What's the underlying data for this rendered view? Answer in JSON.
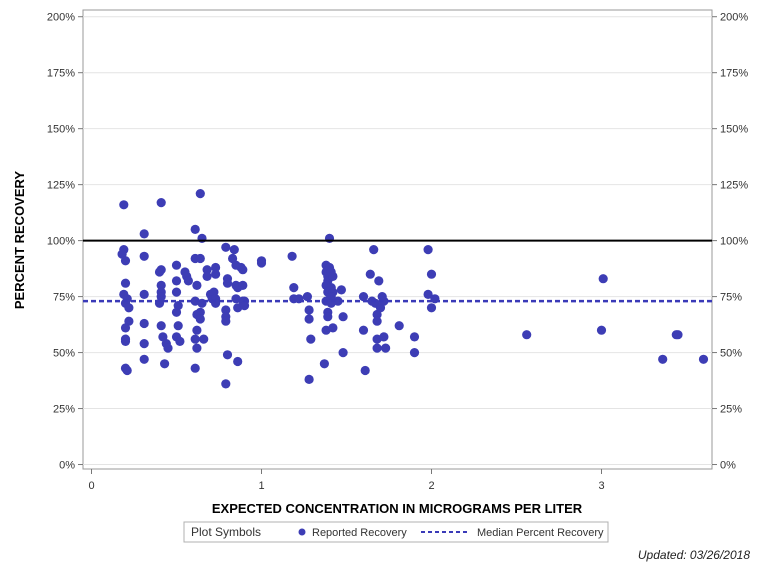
{
  "chart_data": {
    "type": "scatter",
    "title": "",
    "xlabel": "EXPECTED CONCENTRATION IN MICROGRAMS PER LITER",
    "ylabel": "PERCENT RECOVERY",
    "xlim": [
      -0.05,
      3.65
    ],
    "ylim": [
      -2,
      203
    ],
    "x_ticks": [
      0,
      1,
      2,
      3
    ],
    "x_tick_labels": [
      "0",
      "1",
      "2",
      "3"
    ],
    "y_ticks": [
      0,
      25,
      50,
      75,
      100,
      125,
      150,
      175,
      200
    ],
    "y_tick_labels": [
      "0%",
      "25%",
      "50%",
      "75%",
      "100%",
      "125%",
      "150%",
      "175%",
      "200%"
    ],
    "reference_line": {
      "value": 100,
      "color": "#000000"
    },
    "median_line": {
      "name": "Median Percent Recovery",
      "value": 73,
      "color": "#3a3ab8"
    },
    "legend": {
      "title": "Plot Symbols",
      "entries": [
        "Reported Recovery",
        "Median Percent Recovery"
      ],
      "placement": "bottom"
    },
    "marker_color": "#3d3db5",
    "series": [
      {
        "name": "Reported Recovery",
        "points": [
          [
            0.19,
            116
          ],
          [
            0.19,
            96
          ],
          [
            0.18,
            94
          ],
          [
            0.2,
            91
          ],
          [
            0.2,
            81
          ],
          [
            0.19,
            76
          ],
          [
            0.21,
            74
          ],
          [
            0.2,
            72
          ],
          [
            0.22,
            70
          ],
          [
            0.22,
            64
          ],
          [
            0.2,
            61
          ],
          [
            0.2,
            56
          ],
          [
            0.2,
            55
          ],
          [
            0.2,
            43
          ],
          [
            0.21,
            42
          ],
          [
            0.31,
            103
          ],
          [
            0.31,
            93
          ],
          [
            0.31,
            76
          ],
          [
            0.31,
            63
          ],
          [
            0.31,
            54
          ],
          [
            0.31,
            47
          ],
          [
            0.41,
            117
          ],
          [
            0.41,
            87
          ],
          [
            0.4,
            86
          ],
          [
            0.41,
            80
          ],
          [
            0.41,
            77
          ],
          [
            0.41,
            75
          ],
          [
            0.4,
            72
          ],
          [
            0.41,
            62
          ],
          [
            0.42,
            57
          ],
          [
            0.44,
            54
          ],
          [
            0.43,
            45
          ],
          [
            0.45,
            52
          ],
          [
            0.5,
            89
          ],
          [
            0.5,
            82
          ],
          [
            0.5,
            77
          ],
          [
            0.51,
            71
          ],
          [
            0.5,
            68
          ],
          [
            0.51,
            62
          ],
          [
            0.5,
            57
          ],
          [
            0.52,
            55
          ],
          [
            0.55,
            86
          ],
          [
            0.56,
            84
          ],
          [
            0.57,
            82
          ],
          [
            0.61,
            105
          ],
          [
            0.61,
            92
          ],
          [
            0.62,
            80
          ],
          [
            0.61,
            73
          ],
          [
            0.62,
            67
          ],
          [
            0.62,
            60
          ],
          [
            0.61,
            56
          ],
          [
            0.62,
            52
          ],
          [
            0.61,
            43
          ],
          [
            0.64,
            121
          ],
          [
            0.65,
            101
          ],
          [
            0.64,
            92
          ],
          [
            0.65,
            72
          ],
          [
            0.64,
            68
          ],
          [
            0.64,
            65
          ],
          [
            0.66,
            56
          ],
          [
            0.68,
            87
          ],
          [
            0.68,
            84
          ],
          [
            0.7,
            76
          ],
          [
            0.71,
            74
          ],
          [
            0.72,
            77
          ],
          [
            0.73,
            88
          ],
          [
            0.73,
            85
          ],
          [
            0.73,
            74
          ],
          [
            0.73,
            72
          ],
          [
            0.79,
            97
          ],
          [
            0.8,
            83
          ],
          [
            0.8,
            81
          ],
          [
            0.79,
            69
          ],
          [
            0.79,
            66
          ],
          [
            0.79,
            64
          ],
          [
            0.8,
            49
          ],
          [
            0.79,
            36
          ],
          [
            0.83,
            92
          ],
          [
            0.84,
            96
          ],
          [
            0.85,
            89
          ],
          [
            0.85,
            80
          ],
          [
            0.86,
            79
          ],
          [
            0.85,
            74
          ],
          [
            0.86,
            70
          ],
          [
            0.86,
            46
          ],
          [
            0.88,
            88
          ],
          [
            0.89,
            87
          ],
          [
            0.89,
            80
          ],
          [
            0.89,
            73
          ],
          [
            0.9,
            73
          ],
          [
            0.9,
            71
          ],
          [
            1.0,
            91
          ],
          [
            1.0,
            90
          ],
          [
            1.18,
            93
          ],
          [
            1.19,
            79
          ],
          [
            1.19,
            74
          ],
          [
            1.22,
            74
          ],
          [
            1.27,
            75
          ],
          [
            1.28,
            69
          ],
          [
            1.28,
            65
          ],
          [
            1.29,
            56
          ],
          [
            1.28,
            38
          ],
          [
            1.38,
            89
          ],
          [
            1.38,
            86
          ],
          [
            1.39,
            84
          ],
          [
            1.39,
            82
          ],
          [
            1.38,
            80
          ],
          [
            1.39,
            77
          ],
          [
            1.38,
            73
          ],
          [
            1.39,
            68
          ],
          [
            1.39,
            66
          ],
          [
            1.38,
            60
          ],
          [
            1.37,
            45
          ],
          [
            1.4,
            101
          ],
          [
            1.4,
            88
          ],
          [
            1.41,
            86
          ],
          [
            1.42,
            84
          ],
          [
            1.41,
            79
          ],
          [
            1.42,
            77
          ],
          [
            1.41,
            75
          ],
          [
            1.42,
            73
          ],
          [
            1.41,
            72
          ],
          [
            1.42,
            61
          ],
          [
            1.45,
            73
          ],
          [
            1.47,
            78
          ],
          [
            1.48,
            66
          ],
          [
            1.48,
            50
          ],
          [
            1.6,
            75
          ],
          [
            1.6,
            60
          ],
          [
            1.61,
            42
          ],
          [
            1.64,
            85
          ],
          [
            1.65,
            73
          ],
          [
            1.66,
            96
          ],
          [
            1.67,
            72
          ],
          [
            1.68,
            67
          ],
          [
            1.68,
            64
          ],
          [
            1.68,
            56
          ],
          [
            1.68,
            52
          ],
          [
            1.69,
            82
          ],
          [
            1.7,
            70
          ],
          [
            1.71,
            75
          ],
          [
            1.72,
            73
          ],
          [
            1.72,
            57
          ],
          [
            1.73,
            52
          ],
          [
            1.81,
            62
          ],
          [
            1.9,
            57
          ],
          [
            1.9,
            50
          ],
          [
            1.98,
            96
          ],
          [
            1.98,
            76
          ],
          [
            2.0,
            85
          ],
          [
            2.0,
            70
          ],
          [
            2.02,
            74
          ],
          [
            2.56,
            58
          ],
          [
            3.0,
            60
          ],
          [
            3.01,
            83
          ],
          [
            3.36,
            47
          ],
          [
            3.44,
            58
          ],
          [
            3.45,
            58
          ],
          [
            3.6,
            47
          ]
        ]
      }
    ]
  },
  "footer": {
    "updated": "Updated: 03/26/2018"
  }
}
